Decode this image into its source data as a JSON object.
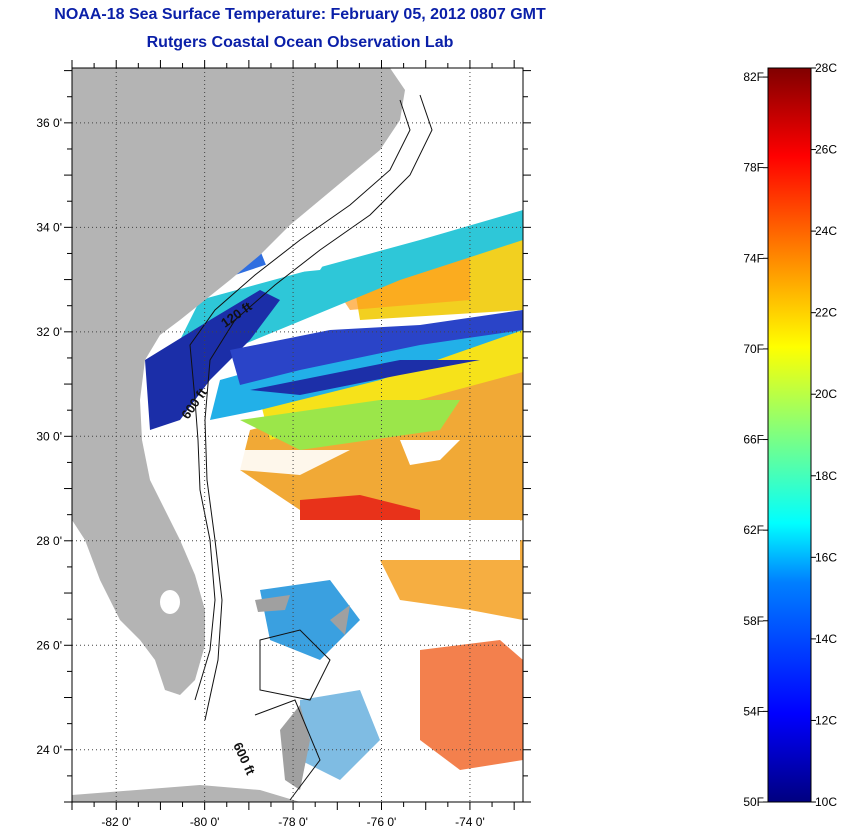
{
  "header": {
    "title": "NOAA-18 Sea Surface Temperature:  February 05, 2012 0807 GMT",
    "subtitle": "Rutgers Coastal Ocean Observation Lab"
  },
  "map": {
    "lon_labels": [
      "-82 0'",
      "-80 0'",
      "-78 0'",
      "-76 0'",
      "-74 0'"
    ],
    "lat_labels": [
      "36 0'",
      "34 0'",
      "32 0'",
      "30 0'",
      "28 0'",
      "26 0'",
      "24 0'"
    ],
    "contour_labels": [
      "120 ft",
      "600 ft",
      "600 ft"
    ],
    "colors": {
      "land": "#b4b4b4",
      "cloud": "#ffffff",
      "cold": "#1d2fb0",
      "warm": "#f0a020"
    }
  },
  "colorbar": {
    "fahrenheit_labels": [
      "82F",
      "78F",
      "74F",
      "70F",
      "66F",
      "62F",
      "58F",
      "54F",
      "50F"
    ],
    "celsius_labels": [
      "28C",
      "26C",
      "24C",
      "22C",
      "20C",
      "18C",
      "16C",
      "14C",
      "12C",
      "10C"
    ],
    "range_celsius": [
      10,
      28
    ]
  }
}
